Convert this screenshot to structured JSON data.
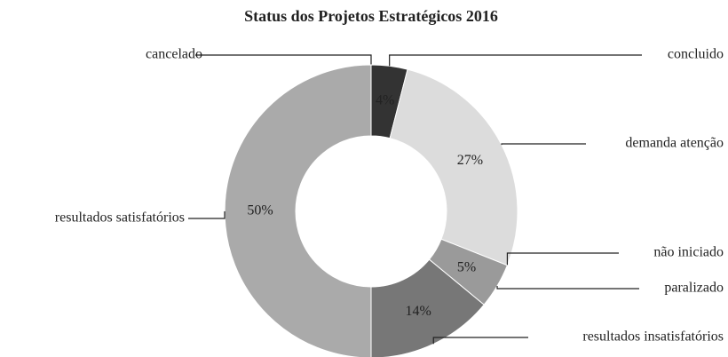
{
  "chart_data": {
    "type": "donut",
    "title": "Status dos Projetos Estratégicos 2016",
    "categories": [
      "cancelado",
      "concluido",
      "demanda atenção",
      "não iniciado",
      "paralizado",
      "resultados insatisfatórios",
      "resultados satisfatórios"
    ],
    "values": [
      0,
      4,
      27,
      0,
      5,
      14,
      50
    ],
    "value_labels": [
      null,
      "4%",
      "27%",
      null,
      "5%",
      "14%",
      "50%"
    ],
    "colors": [
      "#555555",
      "#333333",
      "#dcdcdc",
      "#c8c8c8",
      "#9a9a9a",
      "#777777",
      "#aaaaaa"
    ]
  }
}
